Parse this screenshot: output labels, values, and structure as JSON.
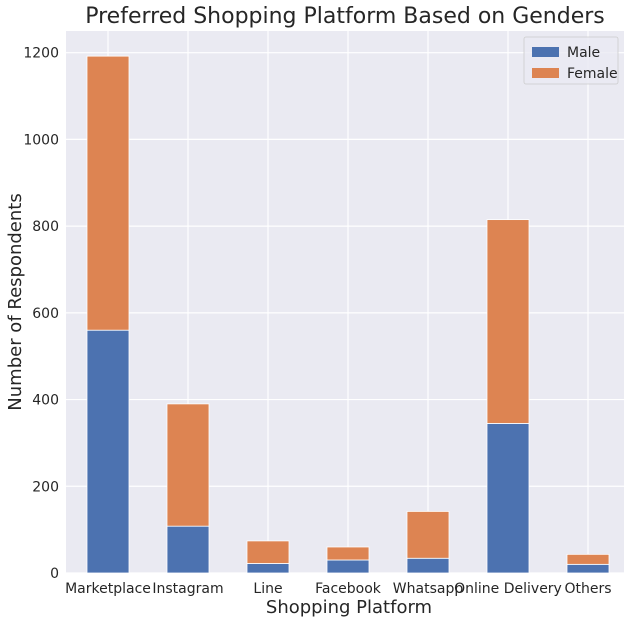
{
  "chart_data": {
    "type": "bar",
    "stacked": true,
    "title": "Preferred Shopping Platform Based on Genders",
    "xlabel": "Shopping Platform",
    "ylabel": "Number of Respondents",
    "categories": [
      "Marketplace",
      "Instagram",
      "Line",
      "Facebook",
      "Whatsapp",
      "Online Delivery",
      "Others"
    ],
    "series": [
      {
        "name": "Male",
        "color": "#4c72b0",
        "values": [
          560,
          108,
          22,
          30,
          34,
          345,
          20
        ]
      },
      {
        "name": "Female",
        "color": "#dd8452",
        "values": [
          632,
          282,
          52,
          30,
          108,
          470,
          23
        ]
      }
    ],
    "ylim": [
      0,
      1250
    ],
    "yticks": [
      0,
      200,
      400,
      600,
      800,
      1000,
      1200
    ],
    "grid": true,
    "legend": {
      "position": "top-right"
    },
    "colors": {
      "background": "#eaeaf2",
      "grid": "#ffffff"
    }
  }
}
